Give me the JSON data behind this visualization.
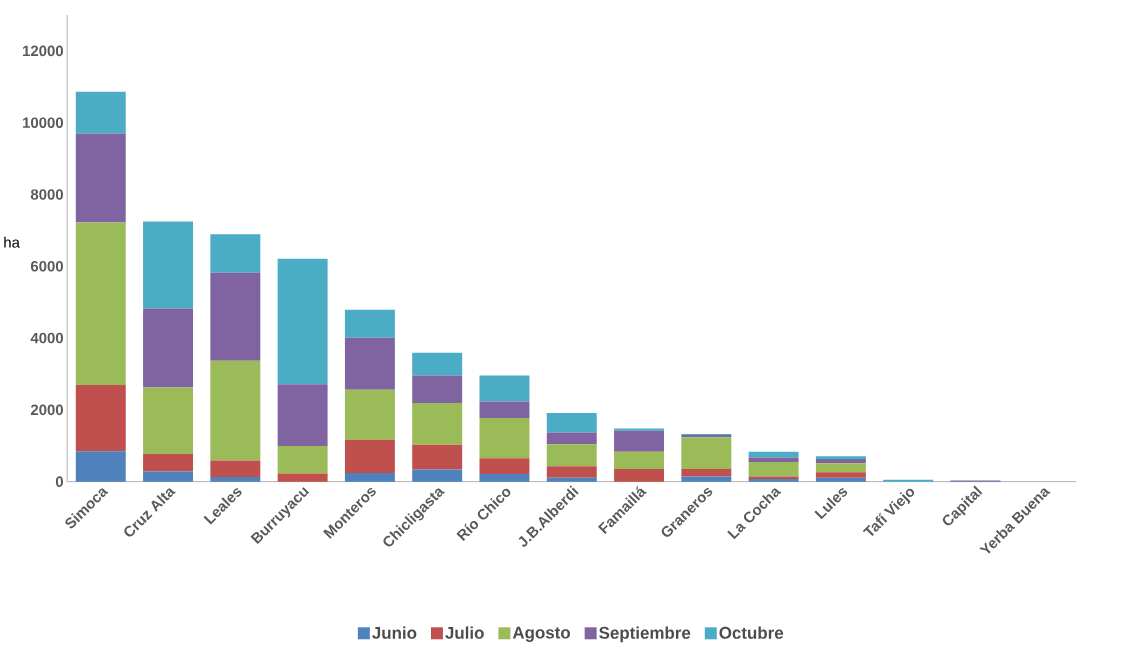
{
  "chart_data": {
    "type": "bar",
    "stacked": true,
    "ylabel": "ha",
    "categories": [
      "Simoca",
      "Cruz Alta",
      "Leales",
      "Burruyacu",
      "Monteros",
      "Chicligasta",
      "Río Chico",
      "J.B.Alberdi",
      "Famaillá",
      "Graneros",
      "La Cocha",
      "Lules",
      "Tafí Viejo",
      "Capital",
      "Yerba Buena"
    ],
    "series": [
      {
        "name": "Junio",
        "color": "#4f81bd",
        "values": [
          850,
          280,
          130,
          0,
          240,
          340,
          210,
          110,
          0,
          140,
          70,
          110,
          0,
          0,
          0
        ]
      },
      {
        "name": "Julio",
        "color": "#c0504d",
        "values": [
          1840,
          490,
          460,
          230,
          930,
          690,
          440,
          320,
          350,
          210,
          70,
          150,
          0,
          0,
          0
        ]
      },
      {
        "name": "Agosto",
        "color": "#9bbb59",
        "values": [
          4530,
          1850,
          2780,
          760,
          1390,
          1160,
          1120,
          610,
          480,
          890,
          410,
          250,
          0,
          0,
          0
        ]
      },
      {
        "name": "Septiembre",
        "color": "#8064a2",
        "values": [
          2480,
          2200,
          2450,
          1720,
          1450,
          770,
          460,
          330,
          590,
          60,
          120,
          120,
          0,
          30,
          0
        ]
      },
      {
        "name": "Octubre",
        "color": "#4bacc6",
        "values": [
          1160,
          2430,
          1070,
          3500,
          780,
          630,
          730,
          540,
          60,
          30,
          160,
          80,
          50,
          0,
          0
        ]
      }
    ],
    "ylim": [
      0,
      13000
    ],
    "yticks": [
      0,
      2000,
      4000,
      6000,
      8000,
      10000,
      12000
    ],
    "legend": "bottom"
  }
}
